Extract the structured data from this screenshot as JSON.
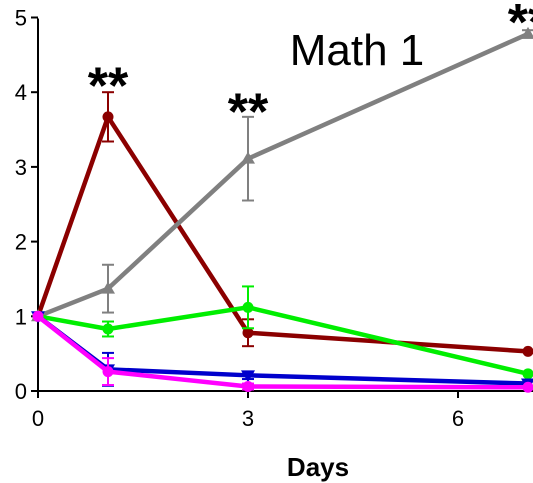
{
  "chart_data": {
    "type": "line",
    "title": "Math 1",
    "xlabel": "Days",
    "ylabel": "",
    "xlim": [
      0,
      7
    ],
    "ylim": [
      0,
      5
    ],
    "x_ticks": [
      0,
      3,
      6
    ],
    "x_tick_labels": [
      "0",
      "3",
      "6"
    ],
    "y_ticks": [
      0,
      1,
      2,
      3,
      4,
      5
    ],
    "y_tick_labels": [
      "0",
      "1",
      "2",
      "3",
      "4",
      "5"
    ],
    "grid": false,
    "legend": "none",
    "series": [
      {
        "color": "#8b0000",
        "marker": "circle",
        "x": [
          0,
          1,
          3,
          7
        ],
        "y": [
          1.0,
          3.67,
          0.78,
          0.53
        ],
        "err": [
          0,
          0.33,
          0.18,
          0
        ]
      },
      {
        "color": "#808080",
        "marker": "triangle",
        "x": [
          0,
          1,
          3,
          7
        ],
        "y": [
          1.0,
          1.37,
          3.11,
          4.78
        ],
        "err": [
          0,
          0.32,
          0.56,
          0.05
        ]
      },
      {
        "color": "#00ee00",
        "marker": "circle",
        "x": [
          0,
          1,
          3,
          7
        ],
        "y": [
          1.0,
          0.83,
          1.12,
          0.23
        ],
        "err": [
          0,
          0.1,
          0.28,
          0
        ]
      },
      {
        "color": "#0000cc",
        "marker": "triangle-down",
        "x": [
          0,
          1,
          3,
          7
        ],
        "y": [
          1.0,
          0.29,
          0.21,
          0.1
        ],
        "err": [
          0,
          0.22,
          0.05,
          0
        ]
      },
      {
        "color": "#ff00ff",
        "marker": "circle",
        "x": [
          0,
          1,
          3,
          7
        ],
        "y": [
          1.0,
          0.26,
          0.06,
          0.05
        ],
        "err": [
          0,
          0.18,
          0.04,
          0
        ]
      }
    ],
    "annotations": [
      {
        "text": "**",
        "x": 1,
        "y": 4.25
      },
      {
        "text": "**",
        "x": 3,
        "y": 3.9
      },
      {
        "text": "**",
        "x": 7,
        "y": 5.1
      }
    ]
  }
}
